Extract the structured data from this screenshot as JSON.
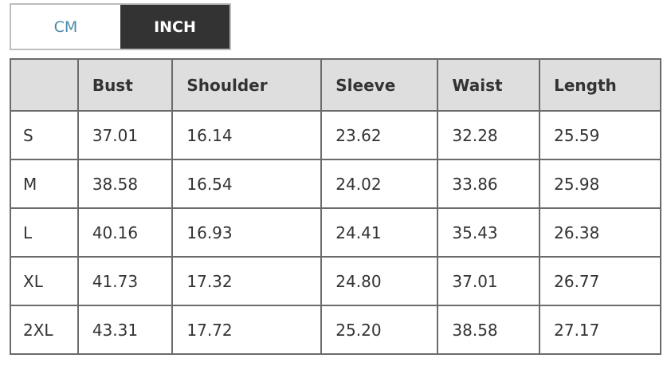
{
  "unit_toggle": {
    "options": [
      "CM",
      "INCH"
    ],
    "selected": "INCH",
    "colors": {
      "active_bg": "#333333",
      "inactive_text": "#4a8aa8",
      "header_bg": "#dedede"
    }
  },
  "table": {
    "headers": [
      "",
      "Bust",
      "Shoulder",
      "Sleeve",
      "Waist",
      "Length"
    ],
    "rows": [
      [
        "S",
        "37.01",
        "16.14",
        "23.62",
        "32.28",
        "25.59"
      ],
      [
        "M",
        "38.58",
        "16.54",
        "24.02",
        "33.86",
        "25.98"
      ],
      [
        "L",
        "40.16",
        "16.93",
        "24.41",
        "35.43",
        "26.38"
      ],
      [
        "XL",
        "41.73",
        "17.32",
        "24.80",
        "37.01",
        "26.77"
      ],
      [
        "2XL",
        "43.31",
        "17.72",
        "25.20",
        "38.58",
        "27.17"
      ]
    ]
  }
}
